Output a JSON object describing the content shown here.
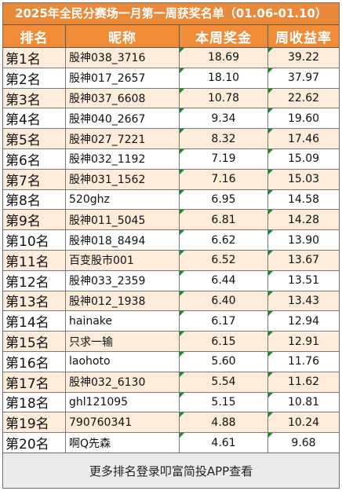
{
  "title": "2025年全民分赛场一月第一周获奖名单（01.06-01.10）",
  "headers": {
    "rank": "排名",
    "nickname": "昵称",
    "prize": "本周奖金",
    "yield": "周收益率"
  },
  "rows": [
    {
      "rank": "第1名",
      "nickname": "股神038_3716",
      "prize": "18.69",
      "yield": "39.22"
    },
    {
      "rank": "第2名",
      "nickname": "股神017_2657",
      "prize": "18.10",
      "yield": "37.97"
    },
    {
      "rank": "第3名",
      "nickname": "股神037_6608",
      "prize": "10.78",
      "yield": "22.62"
    },
    {
      "rank": "第4名",
      "nickname": "股神040_2667",
      "prize": "9.34",
      "yield": "19.60"
    },
    {
      "rank": "第5名",
      "nickname": "股神027_7221",
      "prize": "8.32",
      "yield": "17.46"
    },
    {
      "rank": "第6名",
      "nickname": "股神032_1192",
      "prize": "7.19",
      "yield": "15.09"
    },
    {
      "rank": "第7名",
      "nickname": "股神031_1562",
      "prize": "7.16",
      "yield": "15.03"
    },
    {
      "rank": "第8名",
      "nickname": "520ghz",
      "prize": "6.95",
      "yield": "14.58"
    },
    {
      "rank": "第9名",
      "nickname": "股神011_5045",
      "prize": "6.81",
      "yield": "14.28"
    },
    {
      "rank": "第10名",
      "nickname": "股神018_8494",
      "prize": "6.62",
      "yield": "13.90"
    },
    {
      "rank": "第11名",
      "nickname": "百变股市001",
      "prize": "6.52",
      "yield": "13.67"
    },
    {
      "rank": "第12名",
      "nickname": "股神033_2359",
      "prize": "6.44",
      "yield": "13.51"
    },
    {
      "rank": "第13名",
      "nickname": "股神012_1938",
      "prize": "6.40",
      "yield": "13.43"
    },
    {
      "rank": "第14名",
      "nickname": "hainake",
      "prize": "6.17",
      "yield": "12.94"
    },
    {
      "rank": "第15名",
      "nickname": "只求一输",
      "prize": "6.15",
      "yield": "12.91"
    },
    {
      "rank": "第16名",
      "nickname": "laohoto",
      "prize": "5.60",
      "yield": "11.76"
    },
    {
      "rank": "第17名",
      "nickname": "股神032_6130",
      "prize": "5.54",
      "yield": "11.62"
    },
    {
      "rank": "第18名",
      "nickname": "ghl121095",
      "prize": "5.15",
      "yield": "10.81"
    },
    {
      "rank": "第19名",
      "nickname": "790760341",
      "prize": "4.88",
      "yield": "10.24"
    },
    {
      "rank": "第20名",
      "nickname": "啊Q先森",
      "prize": "4.61",
      "yield": "9.68"
    }
  ],
  "footer": "更多排名登录叩富简投APP查看",
  "colors": {
    "header_bg": "#f08c37",
    "odd_row_bg": "#fcecd9",
    "cell_marker": "#1a8a2e"
  }
}
